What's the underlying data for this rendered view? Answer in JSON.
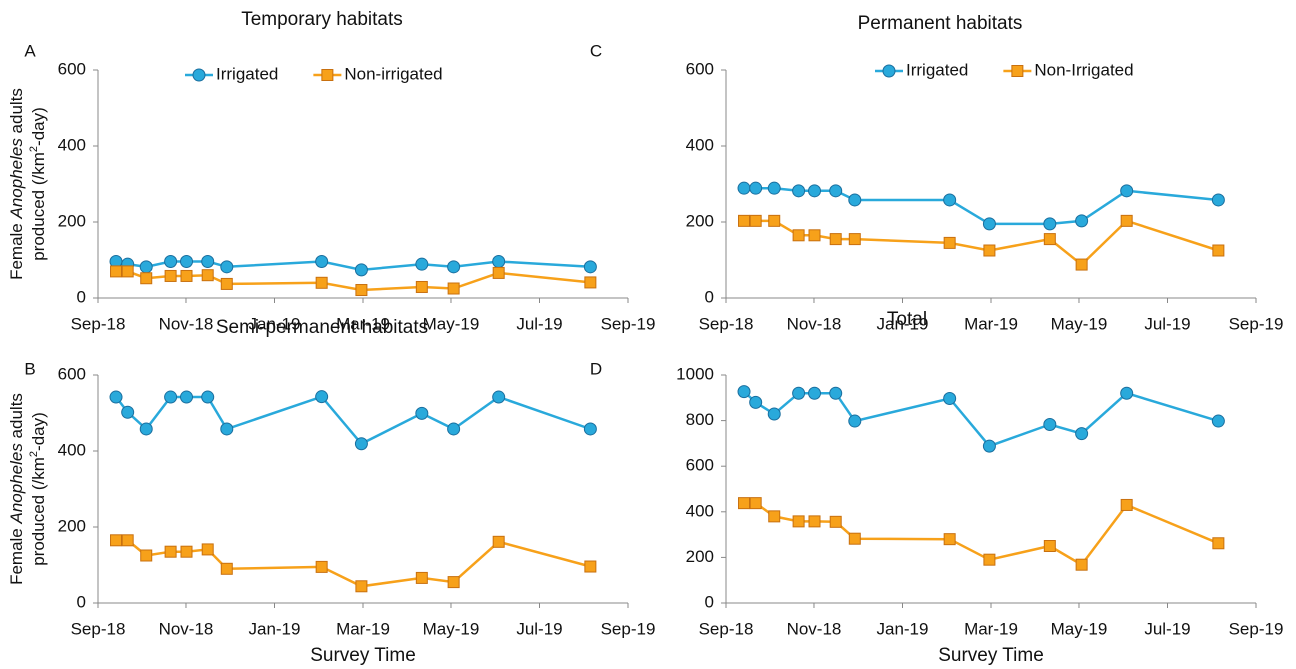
{
  "chart_data": [
    {
      "type": "line",
      "panel": "A",
      "title": "Temporary habitats",
      "ylabel": {
        "line1": [
          "Female ",
          "Anopheles",
          " adults"
        ],
        "line2": [
          "produced (/km",
          "2",
          "-day)"
        ]
      },
      "x": [
        2018.701,
        2018.723,
        2018.758,
        2018.804,
        2018.834,
        2018.874,
        2018.91,
        2019.089,
        2019.164,
        2019.278,
        2019.338,
        2019.423,
        2019.596
      ],
      "xlim": [
        2018.667,
        2019.667
      ],
      "xticks": [
        {
          "value": 2018.667,
          "label": "Sep-18"
        },
        {
          "value": 2018.833,
          "label": "Nov-18"
        },
        {
          "value": 2019.0,
          "label": "Jan-19"
        },
        {
          "value": 2019.167,
          "label": "Mar-19"
        },
        {
          "value": 2019.333,
          "label": "May-19"
        },
        {
          "value": 2019.5,
          "label": "Jul-19"
        },
        {
          "value": 2019.667,
          "label": "Sep-19"
        }
      ],
      "ylim": [
        0,
        600
      ],
      "yticks": [
        0,
        200,
        400,
        600
      ],
      "series": [
        {
          "name": "Irrigated",
          "color": "#29a9db",
          "marker": "circle",
          "values": [
            96,
            89,
            82,
            96,
            96,
            96,
            82,
            96,
            74,
            89,
            82,
            96,
            82
          ]
        },
        {
          "name": "Non-irrigated",
          "color": "#f7a11a",
          "marker": "square",
          "values": [
            70,
            70,
            52,
            58,
            58,
            60,
            37,
            40,
            21,
            29,
            25,
            66,
            41
          ]
        }
      ]
    },
    {
      "type": "line",
      "panel": "B",
      "title": "Semi-permanent habitats",
      "ylabel": {
        "line1": [
          "Female ",
          "Anopheles",
          " adults"
        ],
        "line2": [
          "produced (/km",
          "2",
          "-day)"
        ]
      },
      "xlabel": "Survey Time",
      "x": [
        2018.701,
        2018.723,
        2018.758,
        2018.804,
        2018.834,
        2018.874,
        2018.91,
        2019.089,
        2019.164,
        2019.278,
        2019.338,
        2019.423,
        2019.596
      ],
      "xlim": [
        2018.667,
        2019.667
      ],
      "xticks": [
        {
          "value": 2018.667,
          "label": "Sep-18"
        },
        {
          "value": 2018.833,
          "label": "Nov-18"
        },
        {
          "value": 2019.0,
          "label": "Jan-19"
        },
        {
          "value": 2019.167,
          "label": "Mar-19"
        },
        {
          "value": 2019.333,
          "label": "May-19"
        },
        {
          "value": 2019.5,
          "label": "Jul-19"
        },
        {
          "value": 2019.667,
          "label": "Sep-19"
        }
      ],
      "ylim": [
        0,
        600
      ],
      "yticks": [
        0,
        200,
        400,
        600
      ],
      "series": [
        {
          "color": "#29a9db",
          "marker": "circle",
          "values": [
            542,
            502,
            458,
            542,
            542,
            542,
            458,
            543,
            419,
            499,
            458,
            542,
            458
          ]
        },
        {
          "color": "#f7a11a",
          "marker": "square",
          "values": [
            165,
            165,
            125,
            135,
            135,
            141,
            90,
            95,
            44,
            66,
            55,
            161,
            96
          ]
        }
      ]
    },
    {
      "type": "line",
      "panel": "C",
      "title": "Permanent habitats",
      "x": [
        2018.701,
        2018.723,
        2018.758,
        2018.804,
        2018.834,
        2018.874,
        2018.91,
        2019.089,
        2019.164,
        2019.278,
        2019.338,
        2019.423,
        2019.596
      ],
      "xlim": [
        2018.667,
        2019.667
      ],
      "xticks": [
        {
          "value": 2018.667,
          "label": "Sep-18"
        },
        {
          "value": 2018.833,
          "label": "Nov-18"
        },
        {
          "value": 2019.0,
          "label": "Jan-19"
        },
        {
          "value": 2019.167,
          "label": "Mar-19"
        },
        {
          "value": 2019.333,
          "label": "May-19"
        },
        {
          "value": 2019.5,
          "label": "Jul-19"
        },
        {
          "value": 2019.667,
          "label": "Sep-19"
        }
      ],
      "ylim": [
        0,
        600
      ],
      "yticks": [
        0,
        200,
        400,
        600
      ],
      "series": [
        {
          "name": "Irrigated",
          "color": "#29a9db",
          "marker": "circle",
          "values": [
            289,
            289,
            289,
            282,
            282,
            282,
            258,
            258,
            195,
            195,
            203,
            282,
            258
          ]
        },
        {
          "name": "Non-Irrigated",
          "color": "#f7a11a",
          "marker": "square",
          "values": [
            203,
            203,
            203,
            165,
            165,
            155,
            155,
            145,
            125,
            155,
            88,
            203,
            125
          ]
        }
      ]
    },
    {
      "type": "line",
      "panel": "D",
      "title": "Total",
      "xlabel": "Survey Time",
      "x": [
        2018.701,
        2018.723,
        2018.758,
        2018.804,
        2018.834,
        2018.874,
        2018.91,
        2019.089,
        2019.164,
        2019.278,
        2019.338,
        2019.423,
        2019.596
      ],
      "xlim": [
        2018.667,
        2019.667
      ],
      "xticks": [
        {
          "value": 2018.667,
          "label": "Sep-18"
        },
        {
          "value": 2018.833,
          "label": "Nov-18"
        },
        {
          "value": 2019.0,
          "label": "Jan-19"
        },
        {
          "value": 2019.167,
          "label": "Mar-19"
        },
        {
          "value": 2019.333,
          "label": "May-19"
        },
        {
          "value": 2019.5,
          "label": "Jul-19"
        },
        {
          "value": 2019.667,
          "label": "Sep-19"
        }
      ],
      "ylim": [
        0,
        1000
      ],
      "yticks": [
        0,
        200,
        400,
        600,
        800,
        1000
      ],
      "series": [
        {
          "color": "#29a9db",
          "marker": "circle",
          "values": [
            927,
            880,
            829,
            920,
            920,
            920,
            798,
            897,
            688,
            783,
            743,
            920,
            798
          ]
        },
        {
          "color": "#f7a11a",
          "marker": "square",
          "values": [
            438,
            438,
            380,
            358,
            358,
            356,
            282,
            280,
            190,
            250,
            168,
            430,
            262
          ]
        }
      ]
    }
  ]
}
